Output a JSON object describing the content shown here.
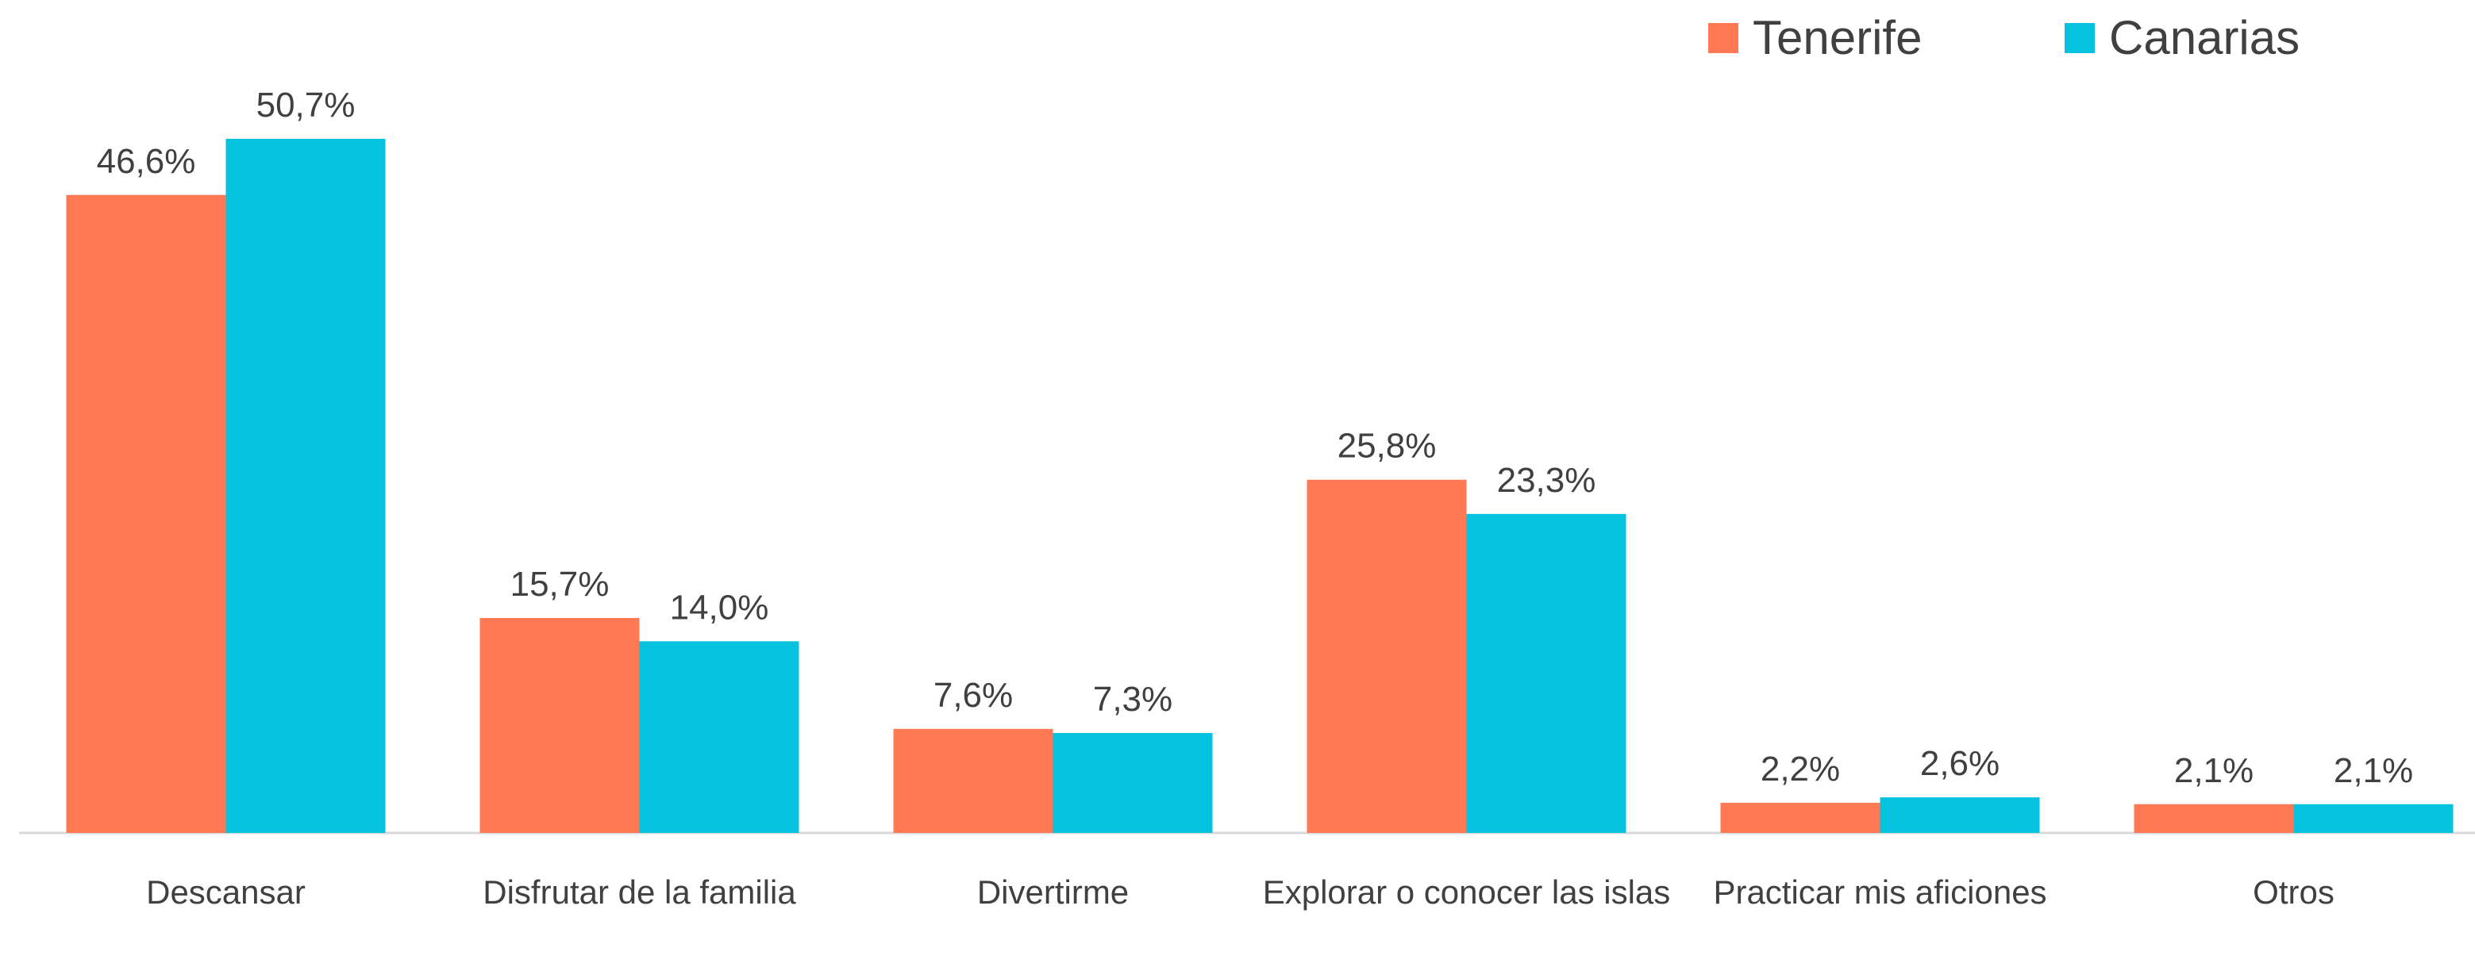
{
  "chart_data": {
    "type": "bar",
    "categories": [
      "Descansar",
      "Disfrutar de la familia",
      "Divertirme",
      "Explorar o conocer las islas",
      "Practicar mis aficiones",
      "Otros"
    ],
    "series": [
      {
        "name": "Tenerife",
        "color": "#ff7954",
        "values": [
          46.6,
          15.7,
          7.6,
          25.8,
          2.2,
          2.1
        ],
        "value_labels": [
          "46,6%",
          "15,7%",
          "7,6%",
          "25,8%",
          "2,2%",
          "2,1%"
        ]
      },
      {
        "name": "Canarias",
        "color": "#05c3de",
        "values": [
          50.7,
          14.0,
          7.3,
          23.3,
          2.6,
          2.1
        ],
        "value_labels": [
          "50,7%",
          "14,0%",
          "7,3%",
          "23,3%",
          "2,6%",
          "2,1%"
        ]
      }
    ],
    "legend": "top-right"
  }
}
